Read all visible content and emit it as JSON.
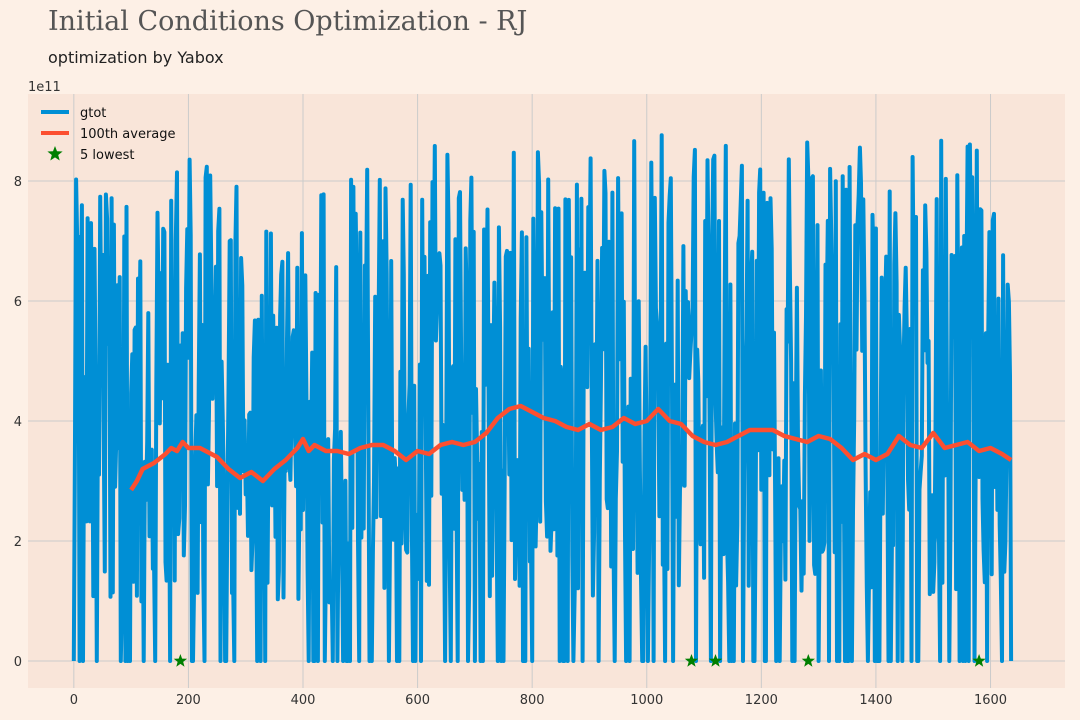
{
  "chart_data": {
    "type": "line",
    "title": "Initial Conditions Optimization - RJ",
    "subtitle": "optimization by Yabox",
    "scale_label": "1e11",
    "xlabel": "",
    "ylabel": "",
    "xlim": [
      -80,
      1730
    ],
    "ylim": [
      -0.45,
      9.45
    ],
    "xticks": [
      0,
      200,
      400,
      600,
      800,
      1000,
      1200,
      1400,
      1600
    ],
    "yticks": [
      0,
      2,
      4,
      6,
      8
    ],
    "grid": true,
    "legend_position": "top-left",
    "legend": [
      {
        "label": "gtot",
        "kind": "line",
        "color": "#008fd5"
      },
      {
        "label": "100th average",
        "kind": "line",
        "color": "#fc4f30"
      },
      {
        "label": "5 lowest",
        "kind": "marker",
        "color": "#007f00"
      }
    ],
    "series": [
      {
        "name": "gtot",
        "color": "#008fd5",
        "description_range": [
          0,
          9.1
        ],
        "x_range": [
          0,
          1636
        ],
        "envelope": {
          "x": [
            0,
            100,
            200,
            300,
            400,
            500,
            600,
            700,
            800,
            900,
            1000,
            1100,
            1200,
            1300,
            1400,
            1500,
            1600,
            1636
          ],
          "max": [
            8.3,
            7.8,
            8.4,
            8.0,
            7.9,
            8.2,
            8.5,
            8.9,
            8.7,
            8.8,
            8.8,
            8.9,
            8.2,
            9.1,
            8.8,
            9.0,
            8.4,
            6.9
          ],
          "min": [
            0,
            0,
            0,
            0,
            0,
            0,
            0,
            0,
            0,
            0,
            0,
            0,
            0,
            0,
            0,
            0,
            0,
            0
          ]
        }
      },
      {
        "name": "100th average",
        "color": "#fc4f30",
        "x": [
          100,
          110,
          120,
          140,
          160,
          170,
          180,
          190,
          200,
          220,
          250,
          270,
          290,
          310,
          330,
          350,
          370,
          380,
          390,
          400,
          410,
          420,
          440,
          460,
          480,
          500,
          520,
          540,
          560,
          580,
          600,
          620,
          640,
          660,
          680,
          700,
          720,
          740,
          760,
          780,
          800,
          820,
          840,
          860,
          880,
          900,
          920,
          940,
          960,
          980,
          1000,
          1020,
          1040,
          1060,
          1080,
          1100,
          1120,
          1140,
          1160,
          1180,
          1200,
          1220,
          1240,
          1260,
          1280,
          1300,
          1320,
          1340,
          1360,
          1380,
          1400,
          1420,
          1440,
          1460,
          1480,
          1500,
          1520,
          1540,
          1560,
          1580,
          1600,
          1620,
          1636
        ],
        "values": [
          2.85,
          3.0,
          3.2,
          3.3,
          3.45,
          3.55,
          3.5,
          3.65,
          3.55,
          3.55,
          3.4,
          3.2,
          3.05,
          3.15,
          3.0,
          3.2,
          3.35,
          3.45,
          3.55,
          3.7,
          3.5,
          3.6,
          3.5,
          3.5,
          3.45,
          3.55,
          3.6,
          3.6,
          3.5,
          3.35,
          3.5,
          3.45,
          3.6,
          3.65,
          3.6,
          3.65,
          3.8,
          4.05,
          4.2,
          4.25,
          4.15,
          4.05,
          4.0,
          3.9,
          3.85,
          3.95,
          3.85,
          3.9,
          4.05,
          3.95,
          4.0,
          4.2,
          4.0,
          3.95,
          3.75,
          3.65,
          3.6,
          3.65,
          3.75,
          3.85,
          3.85,
          3.85,
          3.75,
          3.7,
          3.65,
          3.75,
          3.7,
          3.55,
          3.35,
          3.45,
          3.35,
          3.45,
          3.75,
          3.6,
          3.55,
          3.8,
          3.55,
          3.6,
          3.65,
          3.5,
          3.55,
          3.45,
          3.35
        ]
      },
      {
        "name": "5 lowest",
        "color": "#007f00",
        "kind": "scatter",
        "x": [
          186,
          1078,
          1120,
          1282,
          1580
        ],
        "values": [
          0,
          0,
          0,
          0,
          0
        ]
      }
    ]
  }
}
